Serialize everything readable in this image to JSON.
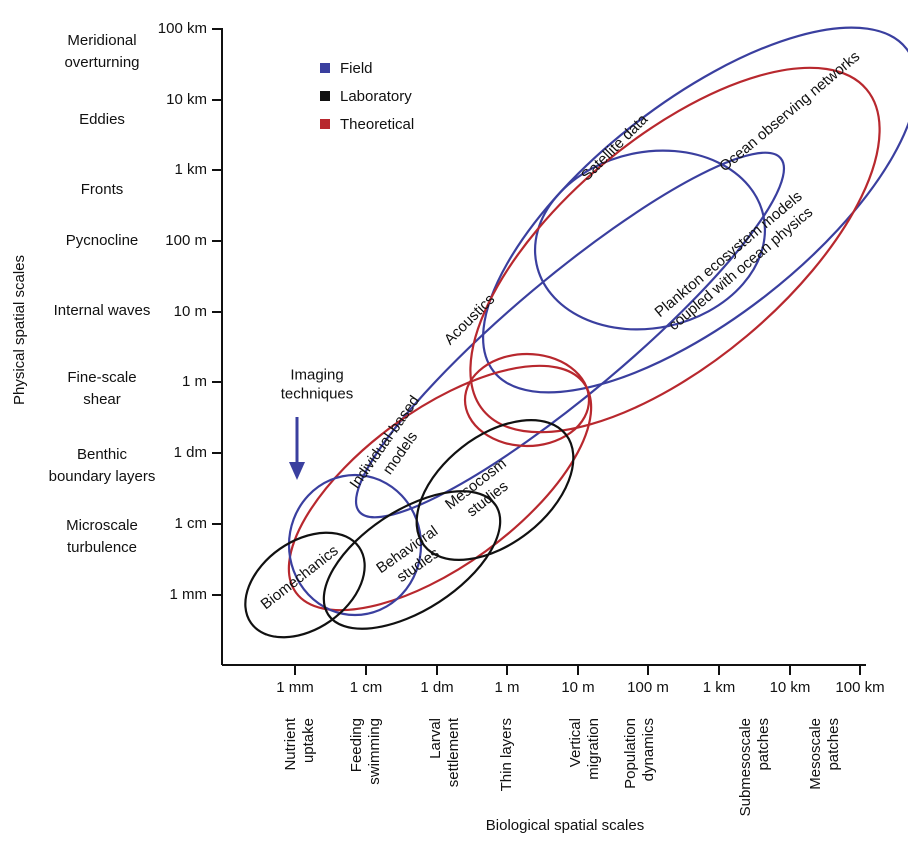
{
  "axes": {
    "y_title": "Physical spatial scales",
    "x_title": "Biological spatial scales",
    "y_ticks": [
      "100 km",
      "10 km",
      "1 km",
      "100 m",
      "10 m",
      "1 m",
      "1 dm",
      "1 cm",
      "1 mm"
    ],
    "x_ticks": [
      "1 mm",
      "1 cm",
      "1 dm",
      "1 m",
      "10 m",
      "100 m",
      "1 km",
      "10 km",
      "100 km"
    ],
    "y_processes": [
      [
        "Meridional",
        "overturning"
      ],
      [
        "Eddies"
      ],
      [
        "Fronts"
      ],
      [
        "Pycnocline"
      ],
      [
        "Internal waves"
      ],
      [
        "Fine-scale",
        "shear"
      ],
      [
        "Benthic",
        "boundary layers"
      ],
      [
        "Microscale",
        "turbulence"
      ]
    ],
    "x_processes": [
      [
        "Nutrient",
        "uptake"
      ],
      [
        "Feeding",
        "swimming"
      ],
      [
        "Larval",
        "settlement"
      ],
      [
        "Thin layers"
      ],
      [
        "Vertical",
        "migration"
      ],
      [
        "Population",
        "dynamics"
      ],
      [
        "Submesoscale",
        "patches"
      ],
      [
        "Mesoscale",
        "patches"
      ]
    ]
  },
  "legend": [
    "Field",
    "Laboratory",
    "Theoretical"
  ],
  "labels": [
    [
      "Satellite data"
    ],
    [
      "Ocean observing networks"
    ],
    [
      "Acoustics"
    ],
    [
      "Plankton ecosystem models",
      "coupled with ocean physics"
    ],
    [
      "Individual-based",
      "models"
    ],
    [
      "Imaging",
      "techniques"
    ],
    [
      "Biomechanics"
    ],
    [
      "Behavioral",
      "studies"
    ],
    [
      "Mesocosm",
      "studies"
    ]
  ]
}
